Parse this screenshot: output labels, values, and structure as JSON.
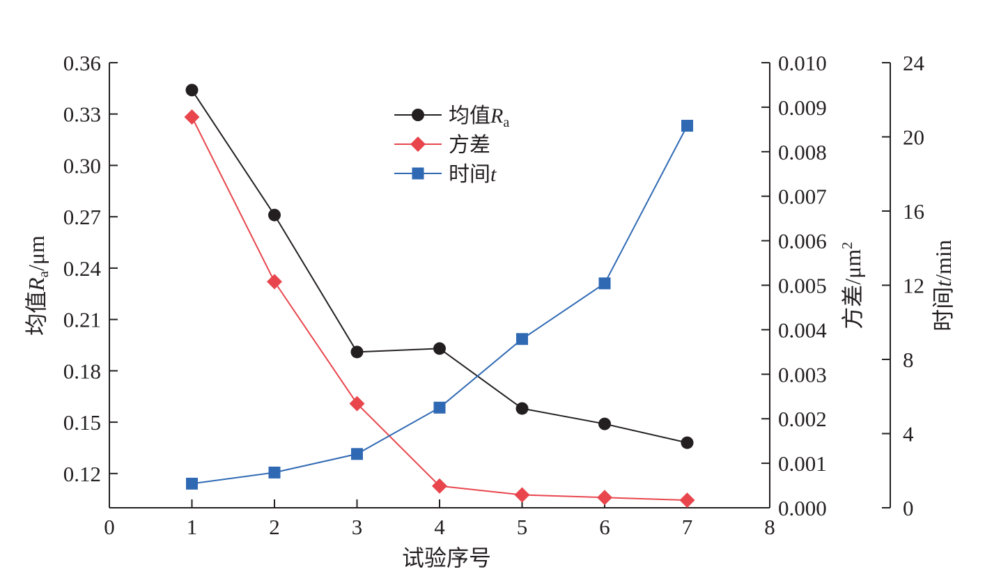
{
  "chart_data": {
    "type": "line",
    "x": [
      1,
      2,
      3,
      4,
      5,
      6,
      7
    ],
    "xlabel": "试验序号",
    "xlim": [
      0,
      8
    ],
    "xticks": [
      "0",
      "1",
      "2",
      "3",
      "4",
      "5",
      "6",
      "7",
      "8"
    ],
    "axes": {
      "left": {
        "label_main": "均值",
        "label_var": "R",
        "label_sub": "a",
        "label_unit": "/μm",
        "ylim": [
          0.1,
          0.36
        ],
        "ticks": [
          "0.12",
          "0.15",
          "0.18",
          "0.21",
          "0.24",
          "0.27",
          "0.30",
          "0.33",
          "0.36"
        ]
      },
      "right1": {
        "label_main": "方差/μm",
        "label_sup": "2",
        "ylim": [
          0,
          0.01
        ],
        "ticks": [
          "0.000",
          "0.001",
          "0.002",
          "0.003",
          "0.004",
          "0.005",
          "0.006",
          "0.007",
          "0.008",
          "0.009",
          "0.010"
        ]
      },
      "right2": {
        "label_main": "时间",
        "label_var": "t",
        "label_unit": "/min",
        "ylim": [
          0,
          24
        ],
        "ticks": [
          "0",
          "4",
          "8",
          "12",
          "16",
          "20",
          "24"
        ]
      }
    },
    "series": [
      {
        "name": "均值Ra",
        "legend_main": "均值",
        "legend_var": "R",
        "legend_sub": "a",
        "axis": "left",
        "marker": "circle",
        "color": "#231f20",
        "values": [
          0.344,
          0.271,
          0.191,
          0.193,
          0.158,
          0.149,
          0.138
        ]
      },
      {
        "name": "方差",
        "legend_main": "方差",
        "axis": "right1",
        "marker": "diamond",
        "color": "#e8454c",
        "values": [
          0.00878,
          0.00508,
          0.00234,
          0.00049,
          0.00029,
          0.00023,
          0.00017
        ]
      },
      {
        "name": "时间t",
        "legend_main": "时间",
        "legend_var": "t",
        "axis": "right2",
        "marker": "square",
        "color": "#2f69b3",
        "values": [
          1.3,
          1.9,
          2.9,
          5.4,
          9.1,
          12.1,
          20.6
        ]
      }
    ],
    "legend_position": "top-center",
    "grid": false
  }
}
